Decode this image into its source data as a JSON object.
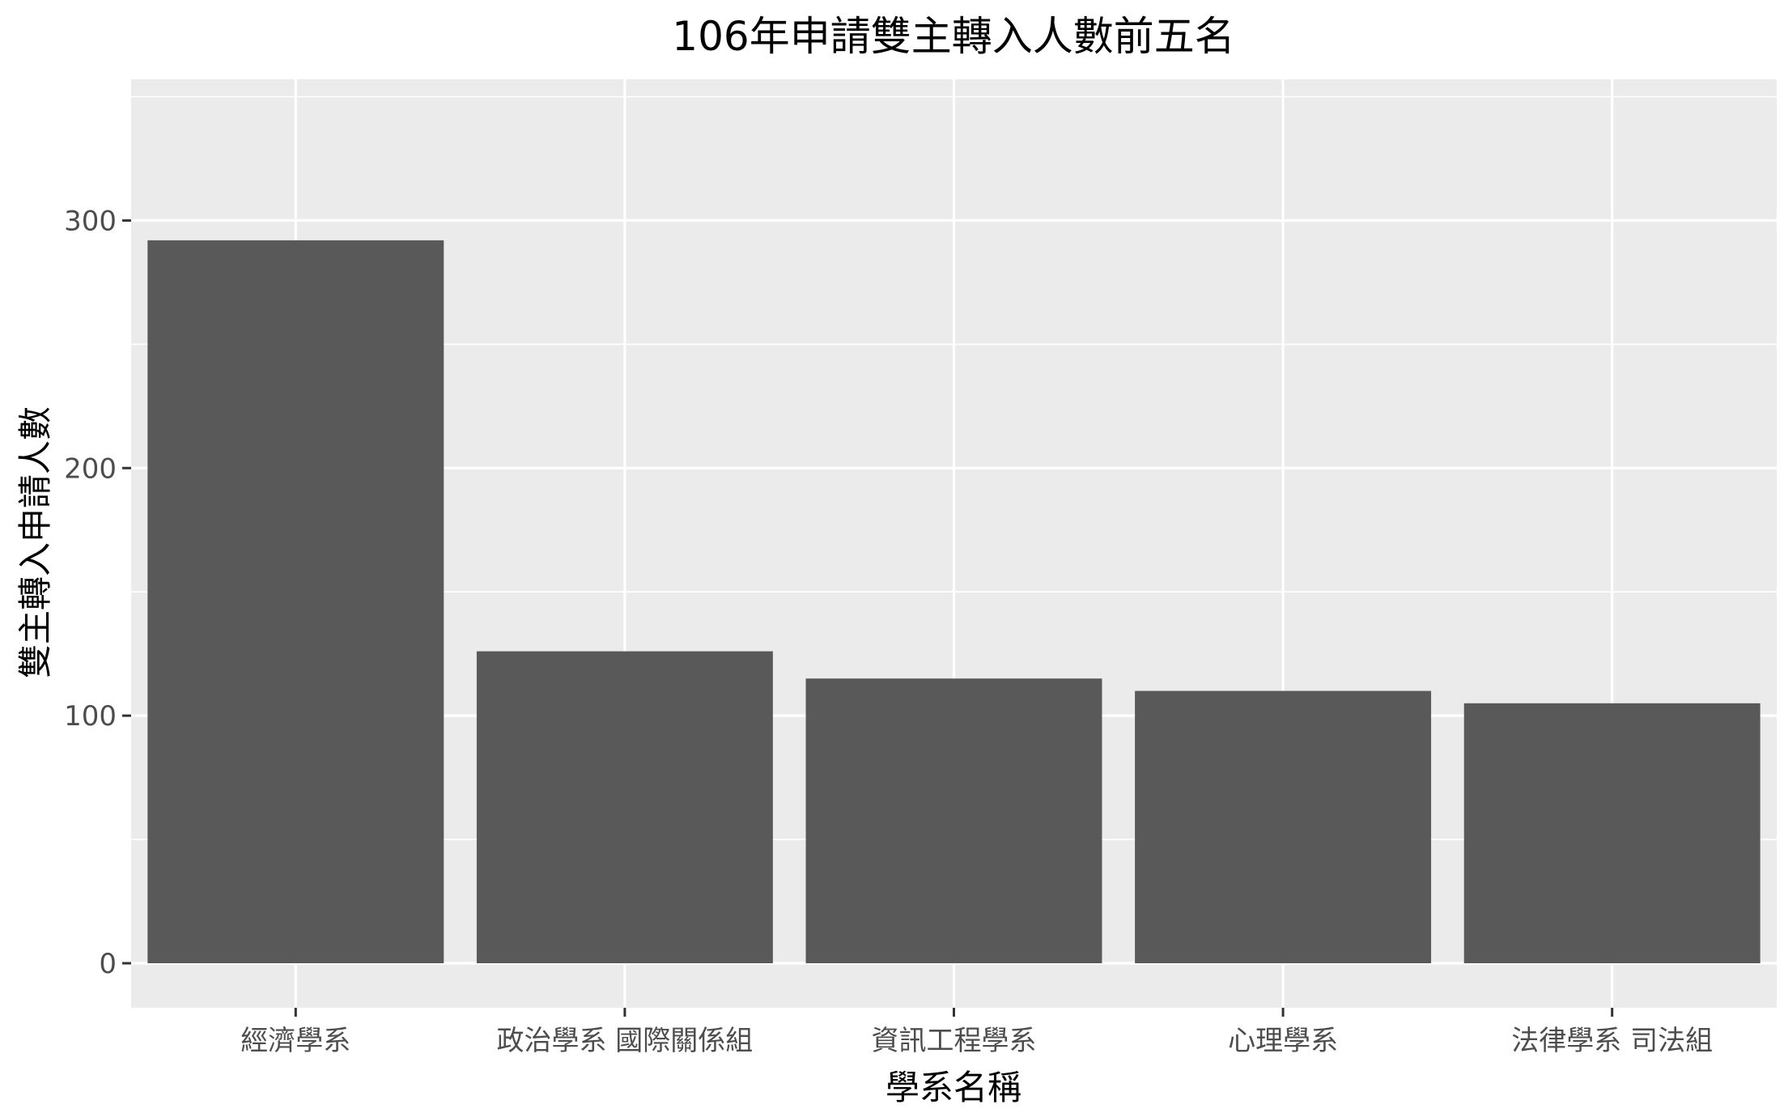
{
  "chart_data": {
    "type": "bar",
    "title": "106年申請雙主轉入人數前五名",
    "xlabel": "學系名稱",
    "ylabel": "雙主轉入申請人數",
    "categories": [
      "經濟學系",
      "政治學系 國際關係組",
      "資訊工程學系",
      "心理學系",
      "法律學系 司法組"
    ],
    "values": [
      292,
      126,
      115,
      110,
      105
    ],
    "ylim": [
      0,
      375
    ],
    "yticks": [
      0,
      100,
      200,
      300
    ],
    "grid": true,
    "colors": {
      "panel": "#ebebeb",
      "grid": "#ffffff",
      "bar": "#595959",
      "tick": "#333333"
    }
  }
}
